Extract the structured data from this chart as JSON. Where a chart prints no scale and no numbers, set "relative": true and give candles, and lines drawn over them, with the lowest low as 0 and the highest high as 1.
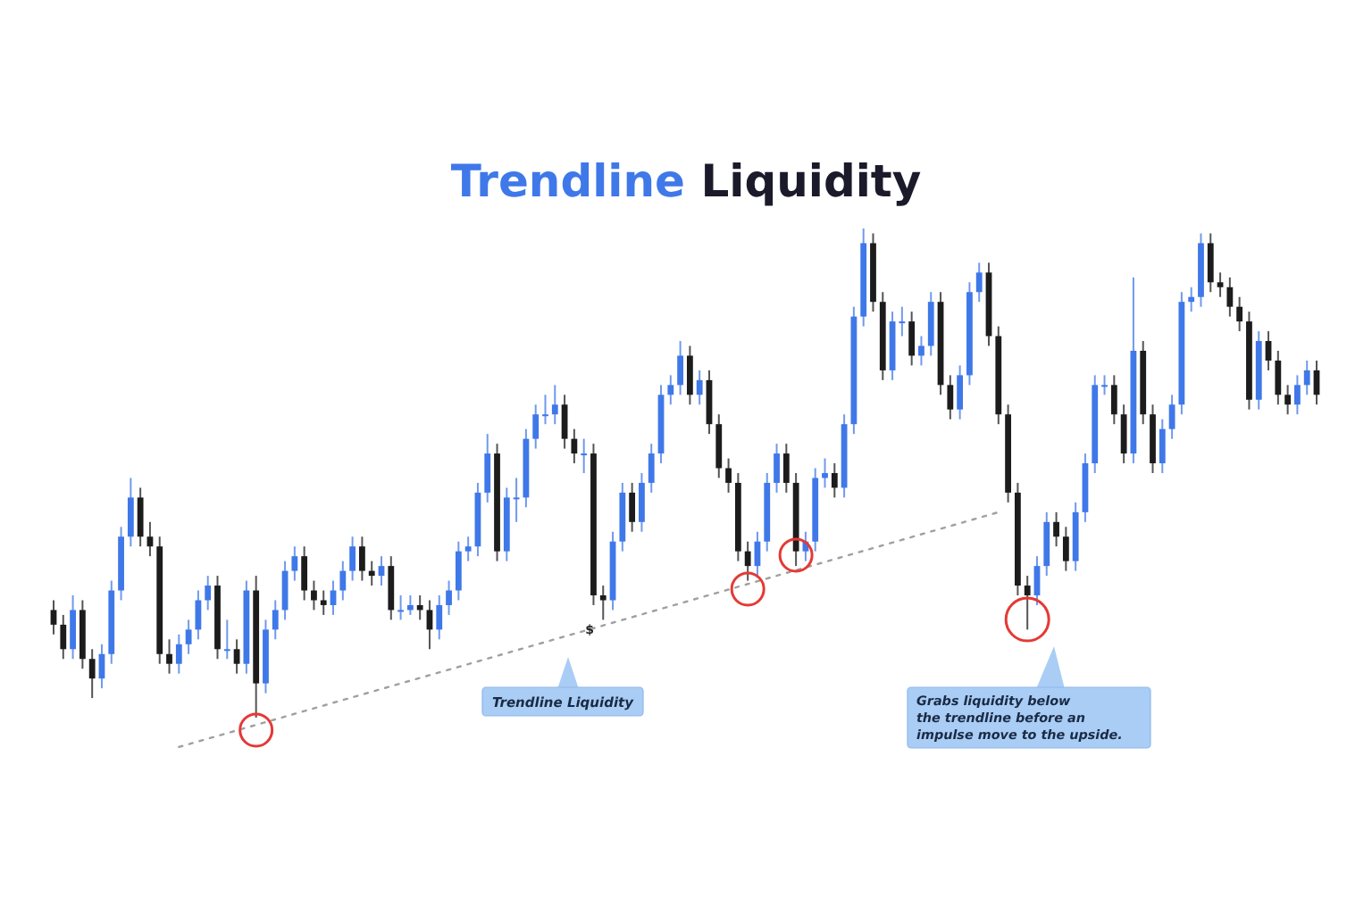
{
  "chart_data": {
    "type": "candlestick",
    "title": "Trendline Liquidity",
    "relative": true,
    "categories": [
      null,
      null,
      null,
      null,
      null,
      null,
      null,
      null,
      null,
      null,
      null,
      null,
      null,
      null,
      null,
      null,
      null,
      null,
      null,
      null,
      null,
      null,
      null,
      null,
      null,
      null,
      null,
      null,
      null,
      null,
      null,
      null,
      null,
      null,
      null,
      null,
      null,
      null,
      null,
      null,
      null,
      null,
      null,
      null,
      null,
      null,
      null,
      null,
      null,
      null,
      null,
      null,
      null,
      null,
      null,
      null,
      null,
      null,
      null,
      null,
      null,
      null,
      null,
      null,
      null,
      null,
      null,
      null,
      null,
      null,
      null,
      null,
      null,
      null,
      null,
      null,
      null,
      null,
      null,
      null,
      null,
      null,
      null,
      null,
      null,
      null,
      null,
      null,
      null,
      null,
      null,
      null,
      null,
      null,
      null,
      null,
      null,
      null,
      null,
      null,
      null,
      null,
      null,
      null,
      null,
      null,
      null,
      null,
      null,
      null,
      null,
      null,
      null,
      null,
      null,
      null,
      null,
      null,
      null,
      null,
      null,
      null,
      null,
      null,
      null,
      null,
      null,
      null,
      null,
      null,
      null,
      null
    ],
    "colors": [
      "#1c1c1c",
      "#1c1c1c",
      "#3f78e8",
      "#1c1c1c",
      "#1c1c1c",
      "#3f78e8",
      "#3f78e8",
      "#3f78e8",
      "#3f78e8",
      "#1c1c1c",
      "#1c1c1c",
      "#1c1c1c",
      "#1c1c1c",
      "#3f78e8",
      "#3f78e8",
      "#3f78e8",
      "#3f78e8",
      "#1c1c1c",
      "#3f78e8",
      "#1c1c1c",
      "#3f78e8",
      "#1c1c1c",
      "#3f78e8",
      "#3f78e8",
      "#3f78e8",
      "#3f78e8",
      "#1c1c1c",
      "#1c1c1c",
      "#1c1c1c",
      "#3f78e8",
      "#3f78e8",
      "#3f78e8",
      "#1c1c1c",
      "#1c1c1c",
      "#3f78e8",
      "#1c1c1c",
      "#3f78e8",
      "#3f78e8",
      "#1c1c1c",
      "#1c1c1c",
      "#3f78e8",
      "#3f78e8",
      "#3f78e8",
      "#3f78e8",
      "#3f78e8",
      "#3f78e8",
      "#1c1c1c",
      "#3f78e8",
      "#3f78e8",
      "#3f78e8",
      "#3f78e8",
      "#3f78e8",
      "#3f78e8",
      "#1c1c1c",
      "#1c1c1c",
      "#3f78e8",
      "#1c1c1c",
      "#1c1c1c",
      "#3f78e8",
      "#3f78e8",
      "#1c1c1c",
      "#3f78e8",
      "#3f78e8",
      "#3f78e8",
      "#3f78e8",
      "#3f78e8",
      "#1c1c1c",
      "#3f78e8",
      "#1c1c1c",
      "#1c1c1c",
      "#1c1c1c",
      "#1c1c1c",
      "#1c1c1c",
      "#3f78e8",
      "#3f78e8",
      "#3f78e8",
      "#1c1c1c",
      "#1c1c1c",
      "#3f78e8",
      "#3f78e8",
      "#3f78e8",
      "#1c1c1c",
      "#3f78e8",
      "#3f78e8",
      "#3f78e8",
      "#1c1c1c",
      "#1c1c1c",
      "#3f78e8",
      "#3f78e8",
      "#1c1c1c",
      "#3f78e8",
      "#3f78e8",
      "#1c1c1c",
      "#1c1c1c",
      "#3f78e8",
      "#3f78e8",
      "#3f78e8",
      "#1c1c1c",
      "#1c1c1c",
      "#1c1c1c",
      "#1c1c1c",
      "#1c1c1c",
      "#3f78e8",
      "#3f78e8",
      "#1c1c1c",
      "#1c1c1c",
      "#3f78e8",
      "#3f78e8",
      "#3f78e8",
      "#3f78e8",
      "#1c1c1c",
      "#1c1c1c",
      "#3f78e8",
      "#1c1c1c",
      "#1c1c1c",
      "#3f78e8",
      "#3f78e8",
      "#3f78e8",
      "#3f78e8",
      "#3f78e8",
      "#1c1c1c",
      "#1c1c1c",
      "#1c1c1c",
      "#1c1c1c",
      "#1c1c1c",
      "#3f78e8",
      "#1c1c1c",
      "#1c1c1c",
      "#1c1c1c",
      "#3f78e8",
      "#3f78e8",
      "#1c1c1c"
    ],
    "ohlc": [
      [
        0.22,
        0.24,
        0.17,
        0.19
      ],
      [
        0.19,
        0.21,
        0.12,
        0.14
      ],
      [
        0.14,
        0.25,
        0.12,
        0.22
      ],
      [
        0.22,
        0.24,
        0.1,
        0.12
      ],
      [
        0.12,
        0.14,
        0.04,
        0.08
      ],
      [
        0.08,
        0.15,
        0.06,
        0.13
      ],
      [
        0.13,
        0.28,
        0.11,
        0.26
      ],
      [
        0.26,
        0.39,
        0.24,
        0.37
      ],
      [
        0.37,
        0.49,
        0.35,
        0.45
      ],
      [
        0.45,
        0.47,
        0.35,
        0.37
      ],
      [
        0.37,
        0.4,
        0.33,
        0.35
      ],
      [
        0.35,
        0.37,
        0.11,
        0.13
      ],
      [
        0.13,
        0.16,
        0.09,
        0.11
      ],
      [
        0.11,
        0.17,
        0.09,
        0.15
      ],
      [
        0.15,
        0.2,
        0.13,
        0.18
      ],
      [
        0.18,
        0.26,
        0.16,
        0.24
      ],
      [
        0.24,
        0.29,
        0.22,
        0.27
      ],
      [
        0.27,
        0.29,
        0.12,
        0.14
      ],
      [
        0.14,
        0.2,
        0.12,
        0.14
      ],
      [
        0.14,
        0.16,
        0.09,
        0.11
      ],
      [
        0.11,
        0.28,
        0.09,
        0.26
      ],
      [
        0.26,
        0.29,
        0,
        0.07
      ],
      [
        0.07,
        0.2,
        0.05,
        0.18
      ],
      [
        0.18,
        0.24,
        0.16,
        0.22
      ],
      [
        0.22,
        0.32,
        0.2,
        0.3
      ],
      [
        0.3,
        0.35,
        0.28,
        0.33
      ],
      [
        0.33,
        0.35,
        0.24,
        0.26
      ],
      [
        0.26,
        0.28,
        0.22,
        0.24
      ],
      [
        0.24,
        0.26,
        0.21,
        0.23
      ],
      [
        0.23,
        0.28,
        0.21,
        0.26
      ],
      [
        0.26,
        0.32,
        0.24,
        0.3
      ],
      [
        0.3,
        0.37,
        0.28,
        0.35
      ],
      [
        0.35,
        0.37,
        0.28,
        0.3
      ],
      [
        0.3,
        0.32,
        0.27,
        0.29
      ],
      [
        0.29,
        0.33,
        0.27,
        0.31
      ],
      [
        0.31,
        0.33,
        0.2,
        0.22
      ],
      [
        0.22,
        0.25,
        0.2,
        0.22
      ],
      [
        0.22,
        0.25,
        0.21,
        0.23
      ],
      [
        0.23,
        0.25,
        0.2,
        0.22
      ],
      [
        0.22,
        0.24,
        0.14,
        0.18
      ],
      [
        0.18,
        0.25,
        0.16,
        0.23
      ],
      [
        0.23,
        0.28,
        0.21,
        0.26
      ],
      [
        0.26,
        0.36,
        0.24,
        0.34
      ],
      [
        0.34,
        0.37,
        0.32,
        0.35
      ],
      [
        0.35,
        0.48,
        0.33,
        0.46
      ],
      [
        0.46,
        0.58,
        0.44,
        0.54
      ],
      [
        0.54,
        0.56,
        0.32,
        0.34
      ],
      [
        0.34,
        0.47,
        0.32,
        0.45
      ],
      [
        0.45,
        0.49,
        0.4,
        0.45
      ],
      [
        0.45,
        0.59,
        0.43,
        0.57
      ],
      [
        0.57,
        0.64,
        0.55,
        0.62
      ],
      [
        0.62,
        0.66,
        0.6,
        0.62
      ],
      [
        0.62,
        0.68,
        0.6,
        0.64
      ],
      [
        0.64,
        0.66,
        0.55,
        0.57
      ],
      [
        0.57,
        0.59,
        0.52,
        0.54
      ],
      [
        0.54,
        0.57,
        0.5,
        0.54
      ],
      [
        0.54,
        0.56,
        0.23,
        0.25
      ],
      [
        0.25,
        0.27,
        0.2,
        0.24
      ],
      [
        0.24,
        0.38,
        0.22,
        0.36
      ],
      [
        0.36,
        0.48,
        0.34,
        0.46
      ],
      [
        0.46,
        0.48,
        0.38,
        0.4
      ],
      [
        0.4,
        0.5,
        0.38,
        0.48
      ],
      [
        0.48,
        0.56,
        0.46,
        0.54
      ],
      [
        0.54,
        0.68,
        0.52,
        0.66
      ],
      [
        0.66,
        0.7,
        0.64,
        0.68
      ],
      [
        0.68,
        0.77,
        0.66,
        0.74
      ],
      [
        0.74,
        0.76,
        0.64,
        0.66
      ],
      [
        0.66,
        0.71,
        0.64,
        0.69
      ],
      [
        0.69,
        0.71,
        0.58,
        0.6
      ],
      [
        0.6,
        0.62,
        0.49,
        0.51
      ],
      [
        0.51,
        0.53,
        0.46,
        0.48
      ],
      [
        0.48,
        0.5,
        0.32,
        0.34
      ],
      [
        0.34,
        0.36,
        0.28,
        0.31
      ],
      [
        0.31,
        0.38,
        0.29,
        0.36
      ],
      [
        0.36,
        0.5,
        0.34,
        0.48
      ],
      [
        0.48,
        0.56,
        0.46,
        0.54
      ],
      [
        0.54,
        0.56,
        0.46,
        0.48
      ],
      [
        0.48,
        0.5,
        0.31,
        0.34
      ],
      [
        0.34,
        0.38,
        0.32,
        0.36
      ],
      [
        0.36,
        0.51,
        0.34,
        0.49
      ],
      [
        0.49,
        0.53,
        0.47,
        0.5
      ],
      [
        0.5,
        0.52,
        0.45,
        0.47
      ],
      [
        0.47,
        0.62,
        0.45,
        0.6
      ],
      [
        0.6,
        0.84,
        0.58,
        0.82
      ],
      [
        0.82,
        1,
        0.8,
        0.97
      ],
      [
        0.97,
        0.99,
        0.83,
        0.85
      ],
      [
        0.85,
        0.87,
        0.69,
        0.71
      ],
      [
        0.71,
        0.83,
        0.69,
        0.81
      ],
      [
        0.81,
        0.84,
        0.78,
        0.81
      ],
      [
        0.81,
        0.83,
        0.72,
        0.74
      ],
      [
        0.74,
        0.78,
        0.72,
        0.76
      ],
      [
        0.76,
        0.87,
        0.74,
        0.85
      ],
      [
        0.85,
        0.87,
        0.66,
        0.68
      ],
      [
        0.68,
        0.7,
        0.61,
        0.63
      ],
      [
        0.63,
        0.72,
        0.61,
        0.7
      ],
      [
        0.7,
        0.89,
        0.68,
        0.87
      ],
      [
        0.87,
        0.93,
        0.85,
        0.91
      ],
      [
        0.91,
        0.93,
        0.76,
        0.78
      ],
      [
        0.78,
        0.8,
        0.6,
        0.62
      ],
      [
        0.62,
        0.64,
        0.44,
        0.46
      ],
      [
        0.46,
        0.48,
        0.25,
        0.27
      ],
      [
        0.27,
        0.29,
        0.18,
        0.25
      ],
      [
        0.25,
        0.33,
        0.23,
        0.31
      ],
      [
        0.31,
        0.42,
        0.29,
        0.4
      ],
      [
        0.4,
        0.42,
        0.35,
        0.37
      ],
      [
        0.37,
        0.39,
        0.3,
        0.32
      ],
      [
        0.32,
        0.44,
        0.3,
        0.42
      ],
      [
        0.42,
        0.54,
        0.4,
        0.52
      ],
      [
        0.52,
        0.7,
        0.5,
        0.68
      ],
      [
        0.68,
        0.7,
        0.66,
        0.68
      ],
      [
        0.68,
        0.7,
        0.6,
        0.62
      ],
      [
        0.62,
        0.64,
        0.52,
        0.54
      ],
      [
        0.54,
        0.9,
        0.52,
        0.75
      ],
      [
        0.75,
        0.77,
        0.6,
        0.62
      ],
      [
        0.62,
        0.64,
        0.5,
        0.52
      ],
      [
        0.52,
        0.61,
        0.5,
        0.59
      ],
      [
        0.59,
        0.66,
        0.57,
        0.64
      ],
      [
        0.64,
        0.87,
        0.62,
        0.85
      ],
      [
        0.85,
        0.88,
        0.83,
        0.86
      ],
      [
        0.86,
        0.99,
        0.84,
        0.97
      ],
      [
        0.97,
        0.99,
        0.87,
        0.89
      ],
      [
        0.89,
        0.91,
        0.86,
        0.88
      ],
      [
        0.88,
        0.9,
        0.82,
        0.84
      ],
      [
        0.84,
        0.86,
        0.79,
        0.81
      ],
      [
        0.81,
        0.83,
        0.63,
        0.65
      ],
      [
        0.65,
        0.79,
        0.63,
        0.77
      ],
      [
        0.77,
        0.79,
        0.71,
        0.73
      ],
      [
        0.73,
        0.75,
        0.64,
        0.66
      ],
      [
        0.66,
        0.68,
        0.62,
        0.64
      ],
      [
        0.64,
        0.7,
        0.62,
        0.68
      ],
      [
        0.68,
        0.73,
        0.66,
        0.71
      ],
      [
        0.71,
        0.73,
        0.64,
        0.66
      ]
    ],
    "series": [
      {
        "type": "line",
        "values": [
          null,
          null,
          null,
          null,
          null,
          null,
          null,
          null,
          null,
          null,
          null,
          null,
          null,
          -0.06,
          null,
          null,
          null,
          null,
          null,
          null,
          null,
          null,
          null,
          null,
          null,
          null,
          null,
          null,
          null,
          null,
          null,
          null,
          null,
          null,
          null,
          null,
          null,
          null,
          null,
          null,
          null,
          null,
          null,
          null,
          null,
          null,
          null,
          null,
          null,
          null,
          null,
          null,
          null,
          null,
          null,
          null,
          null,
          null,
          null,
          null,
          null,
          null,
          null,
          null,
          null,
          null,
          null,
          null,
          null,
          null,
          null,
          null,
          null,
          null,
          null,
          null,
          null,
          null,
          null,
          null,
          null,
          null,
          null,
          null,
          null,
          null,
          null,
          null,
          null,
          null,
          null,
          null,
          null,
          null,
          null,
          null,
          null,
          null,
          0.42,
          null,
          null,
          null,
          null,
          null,
          null,
          null,
          null,
          null,
          null,
          null,
          null,
          null,
          null,
          null,
          null,
          null,
          null,
          null,
          null,
          null,
          null,
          null,
          null,
          null,
          null,
          null,
          null,
          null,
          null,
          null,
          null,
          null
        ],
        "color": "#a0a0a0",
        "line_style": "dotted"
      }
    ],
    "annotations": [
      "$",
      "Trendline Liquidity",
      "Grabs liquidity below\nthe trendline before an\nimpulse move to the upside."
    ]
  }
}
